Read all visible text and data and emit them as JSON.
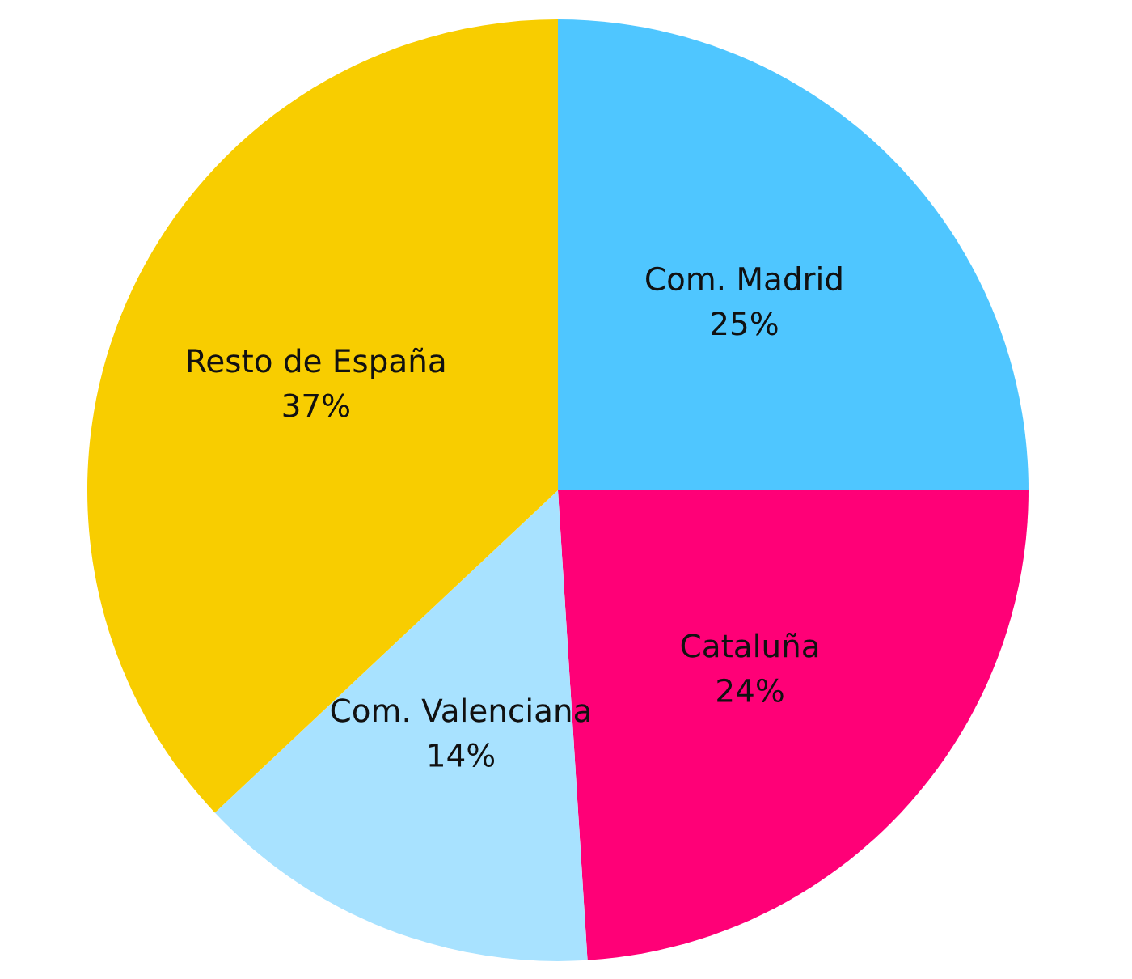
{
  "chart_data": {
    "type": "pie",
    "categories": [
      "Com. Madrid",
      "Cataluña",
      "Com. Valenciana",
      "Resto de España"
    ],
    "values": [
      25,
      24,
      14,
      37
    ],
    "colors": [
      "#4fc6ff",
      "#ff0077",
      "#a8e2ff",
      "#f8cd00"
    ],
    "value_labels": [
      "25%",
      "24%",
      "14%",
      "37%"
    ]
  }
}
